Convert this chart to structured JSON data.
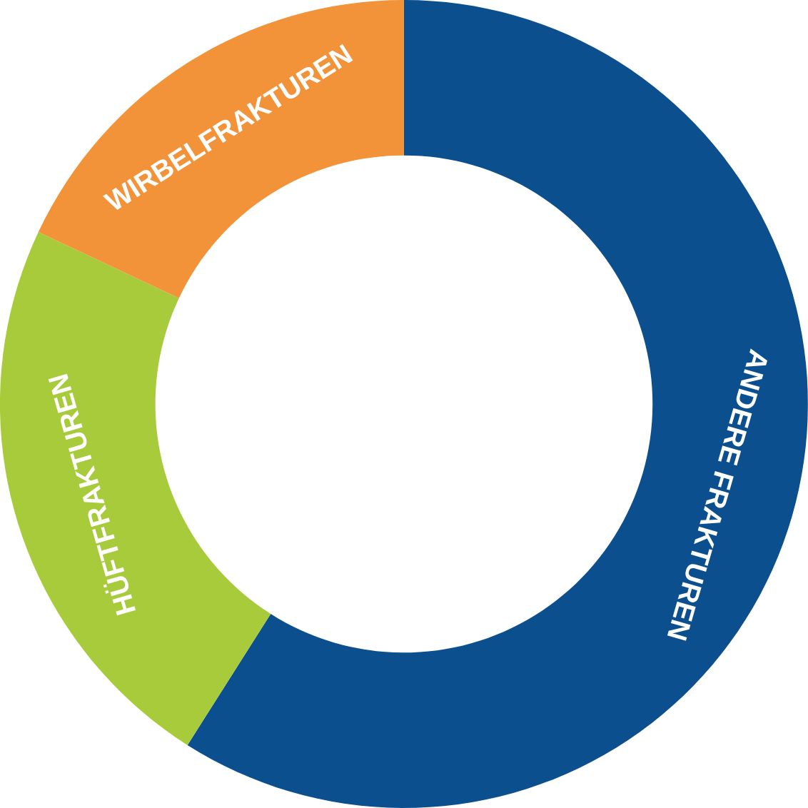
{
  "chart_data": {
    "type": "donut",
    "categories": [
      "ANDERE FRAKTUREN",
      "HÜFTFRAKTUREN",
      "WIRBELFRAKTUREN"
    ],
    "values": [
      59,
      23,
      18
    ],
    "colors": [
      "#0b4f8e",
      "#a8cb3c",
      "#f39339"
    ]
  }
}
